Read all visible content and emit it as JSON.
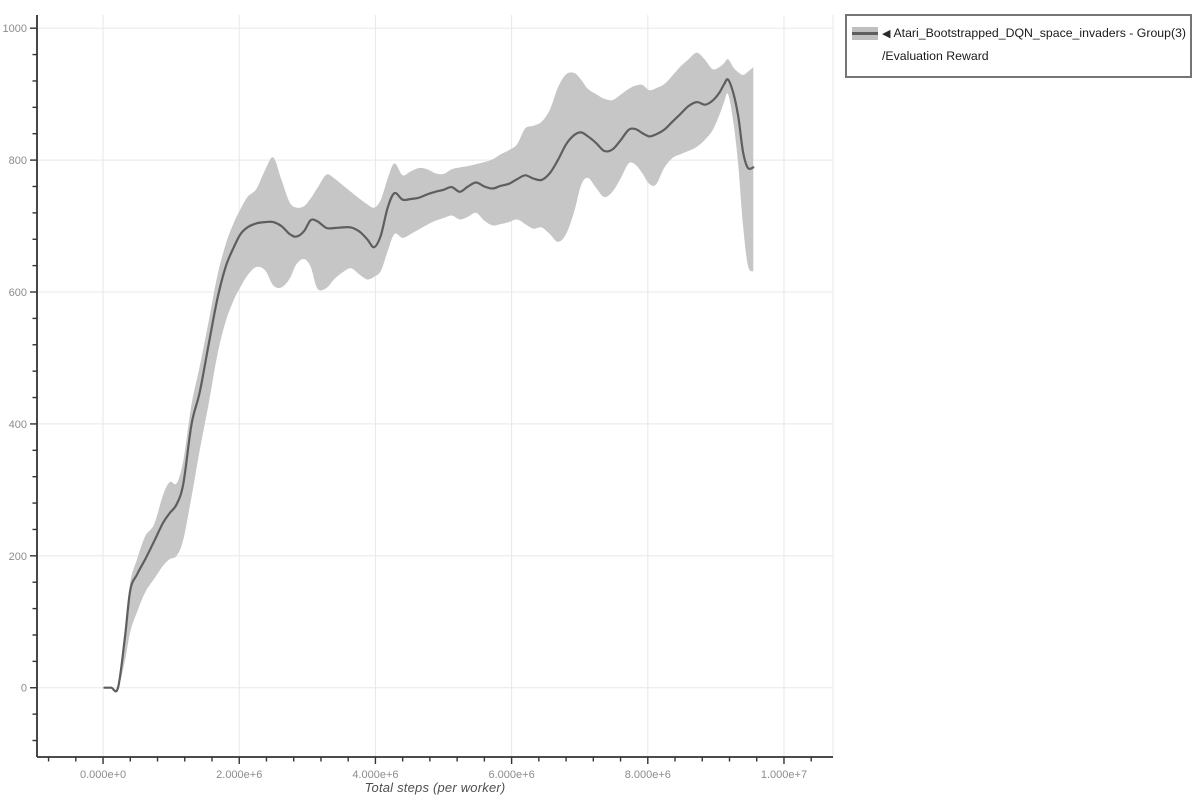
{
  "page": {
    "background": "#ffffff"
  },
  "legend": {
    "arrow": "◀",
    "series_name": "Atari_Bootstrapped_DQN_space_invaders - Group(3)",
    "metric_name": "/Evaluation Reward",
    "border_color": "#757575",
    "marker_band_color": "#bfbfbf",
    "marker_line_color": "#5e5e5e"
  },
  "chart_data": {
    "type": "line",
    "title": "",
    "xlabel": "Total steps (per worker)",
    "ylabel": "",
    "grid": true,
    "legend_position": "top-right",
    "x_scale": 1000000,
    "xlim_millions": [
      -0.97,
      10.72
    ],
    "ylim": [
      -105,
      1020
    ],
    "x_ticks": {
      "values_millions": [
        0,
        2,
        4,
        6,
        8,
        10
      ],
      "labels": [
        "0.000e+0",
        "2.000e+6",
        "4.000e+6",
        "6.000e+6",
        "8.000e+6",
        "1.000e+7"
      ],
      "minor": {
        "start": -0.8,
        "step": 0.4,
        "end": 10.4
      }
    },
    "y_ticks": {
      "values": [
        0,
        200,
        400,
        600,
        800,
        1000
      ],
      "labels": [
        "0",
        "200",
        "400",
        "600",
        "800",
        "1000"
      ],
      "minor": {
        "start": -80,
        "step": 40,
        "end": 1000
      }
    },
    "colors": {
      "grid": "#e8e8e8",
      "spine": "#333333",
      "tick_label": "#8c8c8c",
      "axis_title": "#4f4f4f"
    },
    "series": [
      {
        "name": "Atari_Bootstrapped_DQN_space_invaders - Group(3)/Evaluation Reward",
        "line_color": "#5e5e5e",
        "band_color": "#c6c6c6",
        "x_millions": [
          0.02,
          0.12,
          0.22,
          0.32,
          0.4,
          0.5,
          0.62,
          0.75,
          0.88,
          0.98,
          1.08,
          1.18,
          1.3,
          1.42,
          1.55,
          1.68,
          1.8,
          1.92,
          2.02,
          2.12,
          2.25,
          2.38,
          2.5,
          2.62,
          2.74,
          2.84,
          2.95,
          3.05,
          3.15,
          3.28,
          3.4,
          3.52,
          3.64,
          3.76,
          3.88,
          3.98,
          4.08,
          4.18,
          4.28,
          4.4,
          4.52,
          4.64,
          4.76,
          4.88,
          5.0,
          5.12,
          5.24,
          5.36,
          5.48,
          5.6,
          5.72,
          5.84,
          5.96,
          6.08,
          6.2,
          6.32,
          6.44,
          6.56,
          6.68,
          6.8,
          6.92,
          7.02,
          7.12,
          7.24,
          7.36,
          7.48,
          7.6,
          7.72,
          7.82,
          7.92,
          8.02,
          8.12,
          8.24,
          8.36,
          8.48,
          8.6,
          8.72,
          8.84,
          8.95,
          9.05,
          9.12,
          9.18,
          9.26,
          9.33,
          9.4,
          9.47,
          9.55
        ],
        "mean": [
          0,
          0,
          0,
          75,
          148,
          172,
          195,
          222,
          250,
          265,
          278,
          310,
          400,
          448,
          520,
          590,
          638,
          668,
          688,
          698,
          704,
          706,
          706,
          700,
          688,
          684,
          692,
          709,
          707,
          697,
          697,
          698,
          698,
          692,
          680,
          668,
          686,
          728,
          750,
          740,
          741,
          743,
          748,
          752,
          755,
          759,
          752,
          760,
          766,
          760,
          757,
          761,
          764,
          771,
          777,
          772,
          770,
          780,
          800,
          824,
          838,
          842,
          836,
          826,
          814,
          816,
          830,
          846,
          847,
          841,
          836,
          839,
          846,
          858,
          870,
          882,
          888,
          884,
          890,
          902,
          915,
          922,
          900,
          865,
          812,
          788,
          789
        ],
        "lower": [
          0,
          0,
          0,
          40,
          85,
          115,
          145,
          165,
          185,
          195,
          200,
          225,
          290,
          360,
          430,
          505,
          555,
          588,
          608,
          625,
          638,
          633,
          610,
          607,
          620,
          642,
          650,
          638,
          605,
          606,
          620,
          630,
          636,
          627,
          619,
          623,
          632,
          662,
          688,
          682,
          688,
          695,
          702,
          708,
          712,
          716,
          710,
          714,
          720,
          708,
          701,
          703,
          706,
          710,
          703,
          696,
          698,
          688,
          676,
          688,
          722,
          762,
          773,
          758,
          744,
          752,
          772,
          795,
          793,
          780,
          764,
          763,
          788,
          803,
          809,
          814,
          820,
          831,
          845,
          868,
          888,
          900,
          855,
          790,
          700,
          640,
          631
        ],
        "upper": [
          0,
          0,
          0,
          85,
          160,
          195,
          230,
          248,
          292,
          312,
          310,
          345,
          430,
          487,
          555,
          625,
          672,
          705,
          726,
          744,
          756,
          785,
          804,
          770,
          736,
          728,
          730,
          742,
          758,
          778,
          772,
          762,
          752,
          742,
          733,
          728,
          740,
          772,
          795,
          777,
          783,
          788,
          786,
          780,
          779,
          786,
          789,
          791,
          794,
          797,
          801,
          809,
          815,
          824,
          848,
          852,
          858,
          876,
          910,
          930,
          932,
          922,
          908,
          900,
          893,
          891,
          899,
          908,
          913,
          914,
          906,
          909,
          915,
          928,
          942,
          953,
          963,
          952,
          938,
          941,
          947,
          953,
          940,
          933,
          929,
          934,
          941
        ]
      }
    ]
  }
}
